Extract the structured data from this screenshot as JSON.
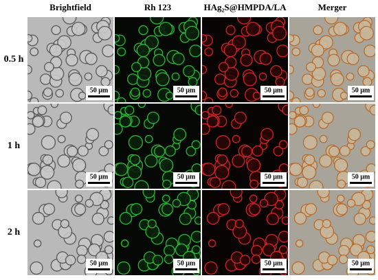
{
  "columns": [
    "Brightfield",
    "Rh 123",
    "HAg₂S@HMPDA/LA",
    "Merger"
  ],
  "rows": [
    "0.5 h",
    "1 h",
    "2 h"
  ],
  "scale_bar": "50 μm"
}
